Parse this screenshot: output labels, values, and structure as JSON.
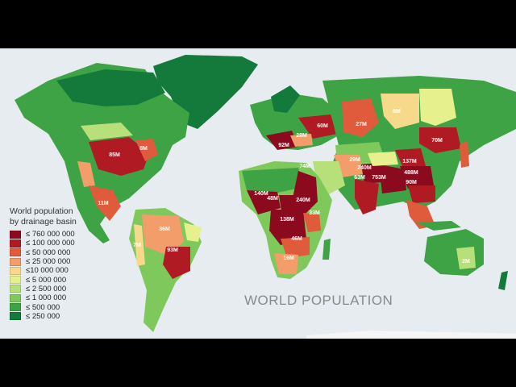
{
  "map": {
    "title": "WORLD POPULATION",
    "credit": "",
    "legend": {
      "title_line1": "World population",
      "title_line2": "by drainage basin",
      "items": [
        {
          "label": "≤ 760 000 000",
          "color": "#8b0a1e"
        },
        {
          "label": "≤ 100 000 000",
          "color": "#b01a22"
        },
        {
          "label": "≤ 50 000 000",
          "color": "#df5b3b"
        },
        {
          "label": "≤ 25 000 000",
          "color": "#f39d6a"
        },
        {
          "label": "≤10 000 000",
          "color": "#f7d98b"
        },
        {
          "label": "≤ 5 000 000",
          "color": "#e6f08c"
        },
        {
          "label": "≤ 2 500 000",
          "color": "#b8e07a"
        },
        {
          "label": "≤ 1 000 000",
          "color": "#7fc85b"
        },
        {
          "label": "≤ 500 000",
          "color": "#3ea344"
        },
        {
          "label": "≤ 250 000",
          "color": "#137a3c"
        }
      ]
    },
    "basin_labels": {
      "north_america": "85M",
      "north_america_east": "8M",
      "mexico": "11M",
      "amazon": "36M",
      "andes": "7M",
      "parana": "93M",
      "europe_west": "92M",
      "europe_east": "60M",
      "caucasus": "28M",
      "siberia": "27M",
      "lena": "8M",
      "amur": "70M",
      "nile": "74M",
      "niger": "140M",
      "chad": "48M",
      "lake_chad": "240M",
      "congo": "138M",
      "great_lakes": "33M",
      "zambezi": "46M",
      "south_africa": "16M",
      "persia": "29M",
      "indus": "240M",
      "india": "63M",
      "ganges": "753M",
      "yangtze": "488M",
      "yellow_river": "137M",
      "china_south": "90M",
      "australia_east": "2M"
    }
  }
}
